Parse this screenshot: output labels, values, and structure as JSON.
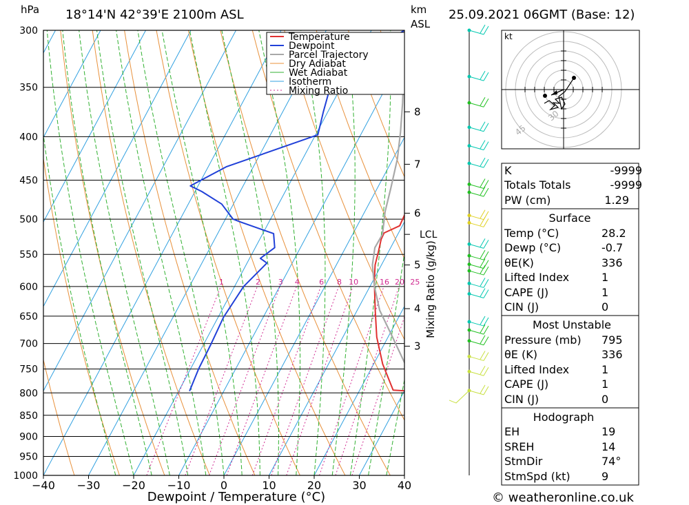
{
  "header": {
    "y_unit": "hPa",
    "location": "18°14'N  42°39'E  2100m  ASL",
    "km_label_1": "km",
    "km_label_2": "ASL",
    "datetime": "25.09.2021  06GMT  (Base: 12)"
  },
  "chart_data": {
    "type": "line",
    "title": "18°14'N  42°39'E  2100m  ASL",
    "xlabel": "Dewpoint / Temperature (°C)",
    "ylabel": "hPa",
    "xlim": [
      -40,
      40
    ],
    "ylim": [
      1000,
      300
    ],
    "x_ticks": [
      -40,
      -30,
      -20,
      -10,
      0,
      10,
      20,
      30,
      40
    ],
    "x_tick_labels": [
      "−40",
      "−30",
      "−20",
      "−10",
      "0",
      "10",
      "20",
      "30",
      "40"
    ],
    "pressure_levels": [
      300,
      350,
      400,
      450,
      500,
      550,
      600,
      650,
      700,
      750,
      800,
      850,
      900,
      950,
      1000
    ],
    "km_ticks": [
      {
        "km": 3,
        "p": 705
      },
      {
        "km": 4,
        "p": 637
      },
      {
        "km": 5,
        "p": 566
      },
      {
        "km": 6,
        "p": 492
      },
      {
        "km": 7,
        "p": 431
      },
      {
        "km": 8,
        "p": 374
      }
    ],
    "lcl": {
      "label": "LCL",
      "p": 521
    },
    "mixing_ratio_label": "Mixing Ratio (g/kg)",
    "mixing_ratios": [
      1,
      2,
      3,
      4,
      6,
      8,
      10,
      16,
      20,
      25
    ],
    "mixing_ratio_label_p": 597,
    "legend": [
      "Temperature",
      "Dewpoint",
      "Parcel Trajectory",
      "Dry Adiabat",
      "Wet Adiabat",
      "Isotherm",
      "Mixing Ratio"
    ],
    "series": [
      {
        "name": "Temperature",
        "color": "#e03030",
        "points": [
          [
            30.8,
            796
          ],
          [
            27.4,
            794
          ],
          [
            22,
            740
          ],
          [
            17.5,
            688
          ],
          [
            14,
            640
          ],
          [
            10.4,
            592
          ],
          [
            8.6,
            566
          ],
          [
            7.8,
            547
          ],
          [
            6.9,
            528
          ],
          [
            6.8,
            519
          ],
          [
            9.4,
            509
          ],
          [
            9.2,
            494
          ],
          [
            9.2,
            478
          ],
          [
            10,
            469
          ],
          [
            11.3,
            458
          ],
          [
            9.8,
            432
          ],
          [
            8.3,
            396
          ],
          [
            6.5,
            368
          ],
          [
            5.3,
            348
          ]
        ]
      },
      {
        "name": "Dewpoint",
        "color": "#2040d8",
        "points": [
          [
            -17.6,
            796
          ],
          [
            -18.2,
            750
          ],
          [
            -18.4,
            702
          ],
          [
            -18.8,
            652
          ],
          [
            -18,
            600
          ],
          [
            -15.6,
            563
          ],
          [
            -17.6,
            556
          ],
          [
            -15.7,
            540
          ],
          [
            -17.6,
            520
          ],
          [
            -26.2,
            504
          ],
          [
            -28.3,
            500
          ],
          [
            -32.6,
            480
          ],
          [
            -38.5,
            464
          ],
          [
            -41.7,
            457
          ],
          [
            -36,
            434
          ],
          [
            -19.5,
            398
          ],
          [
            -21,
            374
          ],
          [
            -22.7,
            345
          ],
          [
            -17.5,
            318
          ],
          [
            -12.7,
            300
          ]
        ]
      },
      {
        "name": "Parcel Trajectory",
        "color": "#a8a8a8",
        "points": [
          [
            32,
            785
          ],
          [
            27,
            740
          ],
          [
            21,
            688
          ],
          [
            15,
            640
          ],
          [
            11,
            600
          ],
          [
            8,
            566
          ],
          [
            6.5,
            540
          ],
          [
            6.6,
            521
          ],
          [
            4.5,
            490
          ],
          [
            3,
            460
          ],
          [
            1,
            425
          ],
          [
            -1.5,
            395
          ],
          [
            -4.5,
            365
          ],
          [
            -8,
            335
          ],
          [
            -11.5,
            310
          ]
        ]
      }
    ]
  },
  "wind_profile": {
    "colors": [
      "#00c8b0",
      "#00c8b0",
      "#20c020",
      "#00c8b0",
      "#00c8b0",
      "#00c8b0",
      "#20c020",
      "#20c020",
      "#e0d020",
      "#e0d020",
      "#00c8b0",
      "#20c020",
      "#20c020",
      "#20c020",
      "#00c8b0",
      "#00c8b0",
      "#00c8b0",
      "#20c020",
      "#20c020",
      "#c8e040",
      "#c8e040",
      "#c8e040"
    ],
    "levels": [
      300,
      340,
      365,
      390,
      410,
      430,
      455,
      465,
      495,
      505,
      535,
      552,
      565,
      575,
      595,
      612,
      660,
      675,
      695,
      725,
      755,
      795
    ]
  },
  "hodograph": {
    "unit": "kt",
    "ring_labels": [
      "30",
      "45"
    ]
  },
  "indices": {
    "k_label": "K",
    "k_value": "-9999",
    "tt_label": "Totals Totals",
    "tt_value": "-9999",
    "pw_label": "PW (cm)",
    "pw_value": "1.29"
  },
  "surface": {
    "title": "Surface",
    "temp_label": "Temp (°C)",
    "temp_value": "28.2",
    "dewp_label": "Dewp (°C)",
    "dewp_value": "-0.7",
    "theta_label": "θE(K)",
    "theta_value": "336",
    "li_label": "Lifted Index",
    "li_value": "1",
    "cape_label": "CAPE (J)",
    "cape_value": "1",
    "cin_label": "CIN (J)",
    "cin_value": "0"
  },
  "most_unstable": {
    "title": "Most Unstable",
    "pressure_label": "Pressure (mb)",
    "pressure_value": "795",
    "theta_label": "θE (K)",
    "theta_value": "336",
    "li_label": "Lifted Index",
    "li_value": "1",
    "cape_label": "CAPE (J)",
    "cape_value": "1",
    "cin_label": "CIN (J)",
    "cin_value": "0"
  },
  "hodograph_stats": {
    "title": "Hodograph",
    "eh_label": "EH",
    "eh_value": "19",
    "sreh_label": "SREH",
    "sreh_value": "14",
    "stmdir_label": "StmDir",
    "stmdir_value": "74°",
    "stmspd_label": "StmSpd (kt)",
    "stmspd_value": "9"
  },
  "footer": {
    "copyright": "© weatheronline.co.uk"
  }
}
